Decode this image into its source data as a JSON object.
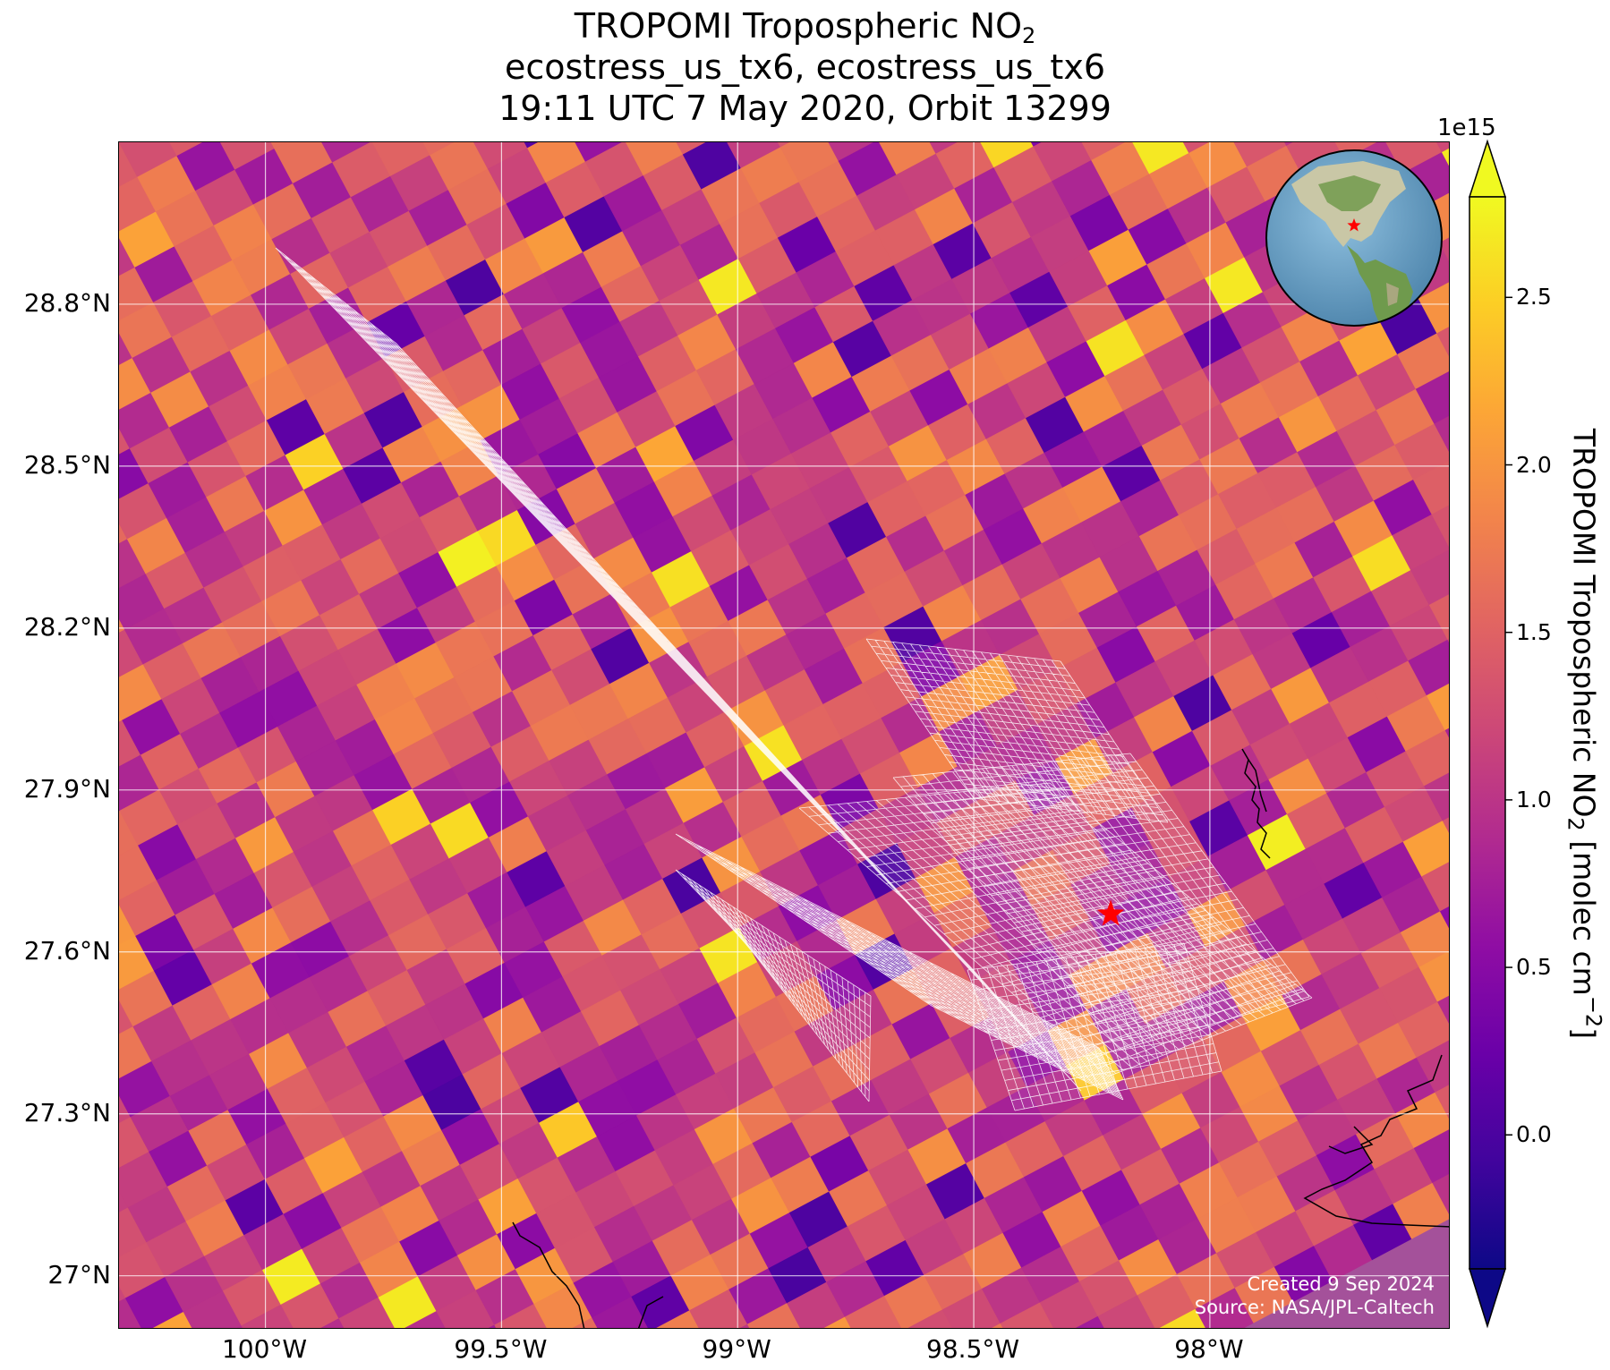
{
  "title": {
    "line1_prefix": "TROPOMI Tropospheric NO",
    "line1_sub": "2",
    "line2": "ecostress_us_tx6, ecostress_us_tx6",
    "line3": "19:11 UTC 7 May 2020, Orbit 13299"
  },
  "map": {
    "lat_labels": [
      "28.8°N",
      "28.5°N",
      "28.2°N",
      "27.9°N",
      "27.6°N",
      "27.3°N",
      "27°N"
    ],
    "lon_labels": [
      "100°W",
      "99.5°W",
      "99°W",
      "98.5°W",
      "98°W"
    ],
    "lat_values": [
      28.8,
      28.5,
      28.2,
      27.9,
      27.6,
      27.3,
      27.0
    ],
    "lon_values": [
      -100.0,
      -99.5,
      -99.0,
      -98.5,
      -98.0
    ],
    "extent": {
      "lon_min": -100.31,
      "lon_max": -97.49,
      "lat_min": 26.9,
      "lat_max": 29.1
    },
    "site_marker": {
      "lon": -98.21,
      "lat": 27.67,
      "color": "#ff0000"
    },
    "credit_line1": "Created 9 Sep 2024",
    "credit_line2": "Source: NASA/JPL-Caltech"
  },
  "colorbar": {
    "exponent": "1e15",
    "ticks": [
      "2.5",
      "2.0",
      "1.5",
      "1.0",
      "0.5",
      "0.0"
    ],
    "tick_values": [
      2.5,
      2.0,
      1.5,
      1.0,
      0.5,
      0.0
    ],
    "vmin": -0.4,
    "vmax": 2.8,
    "label_prefix": "TROPOMI Tropospheric NO",
    "label_sub": "2",
    "label_mid": " [molec cm",
    "label_sup": "−2",
    "label_end": "]",
    "colormap": "plasma",
    "extend": "both"
  },
  "colors": {
    "grid": "#ffffff",
    "footprint_outline": "#ffffff",
    "coastline": "#000000",
    "globe_ocean": "#6fa5c9",
    "globe_land": "#6b8f4e"
  }
}
